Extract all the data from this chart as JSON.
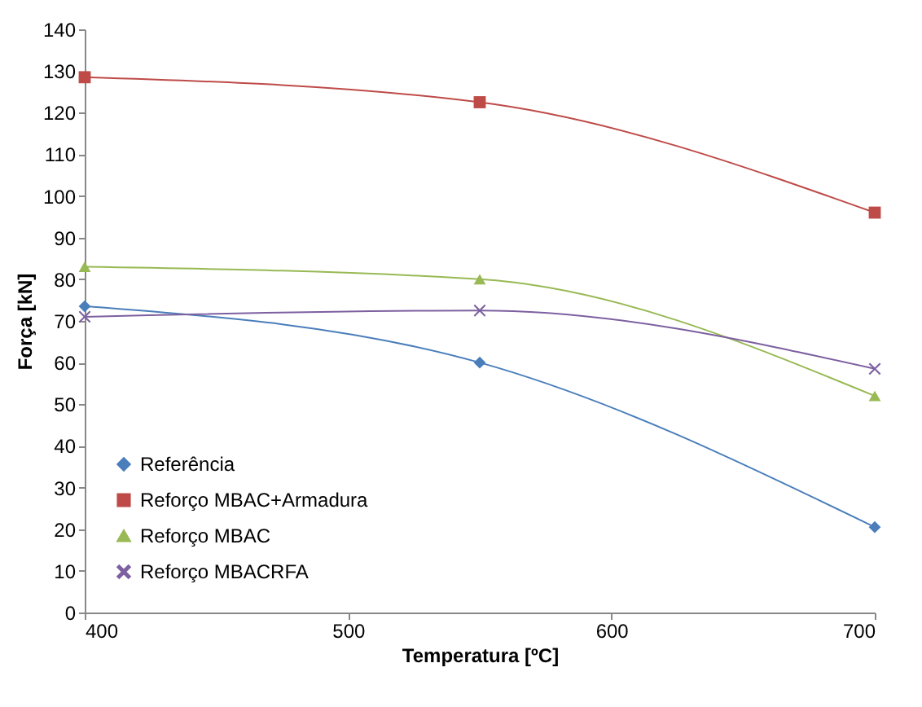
{
  "chart_data": {
    "type": "line",
    "xlabel": "Temperatura [ºC]",
    "ylabel": "Força [kN]",
    "x": [
      400,
      550,
      700
    ],
    "series": [
      {
        "name": "Referência",
        "color": "#4a7ebb",
        "marker": "diamond",
        "values": [
          73.5,
          60,
          20.5
        ]
      },
      {
        "name": "Reforço MBAC+Armadura",
        "color": "#be4b48",
        "marker": "square",
        "values": [
          128.5,
          122.5,
          96
        ]
      },
      {
        "name": "Reforço MBAC",
        "color": "#98b954",
        "marker": "triangle",
        "values": [
          83,
          80,
          52
        ]
      },
      {
        "name": "Reforço MBACRFA",
        "color": "#7d60a0",
        "marker": "cross",
        "values": [
          71,
          72.5,
          58.5
        ]
      }
    ],
    "xlim": [
      400,
      700
    ],
    "xticks": [
      400,
      500,
      600,
      700
    ],
    "ylim": [
      0,
      140
    ],
    "yticks": [
      0,
      10,
      20,
      30,
      40,
      50,
      60,
      70,
      80,
      90,
      100,
      110,
      120,
      130,
      140
    ],
    "grid": false,
    "legend": "bottom left",
    "line_style": "solid"
  }
}
